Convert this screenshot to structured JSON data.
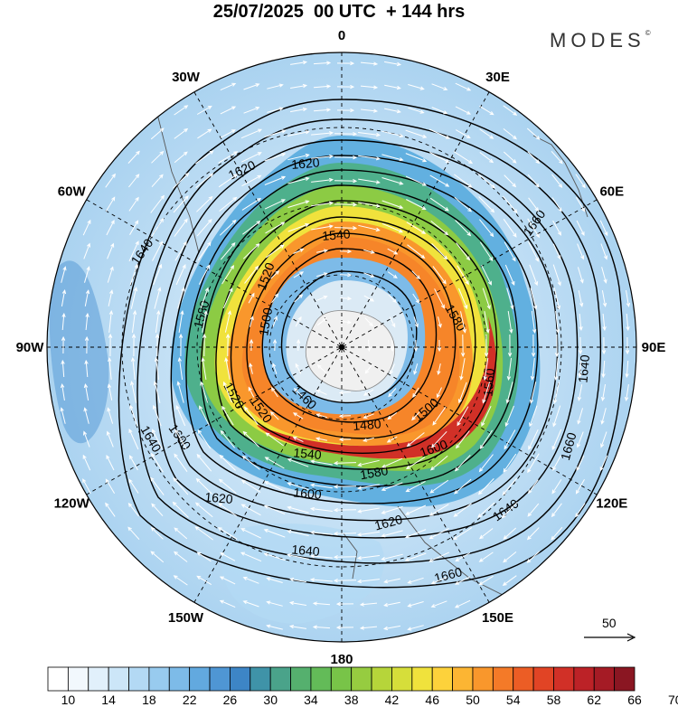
{
  "title": "25/07/2025  00 UTC  + 144 hrs",
  "brand": "MODES",
  "brand_mark": "©",
  "longitude_labels": [
    {
      "text": "0",
      "deg": 0
    },
    {
      "text": "30E",
      "deg": 30
    },
    {
      "text": "60E",
      "deg": 60
    },
    {
      "text": "90E",
      "deg": 90
    },
    {
      "text": "120E",
      "deg": 120
    },
    {
      "text": "150E",
      "deg": 150
    },
    {
      "text": "180",
      "deg": 180
    },
    {
      "text": "150W",
      "deg": -150
    },
    {
      "text": "120W",
      "deg": -120
    },
    {
      "text": "90W",
      "deg": -90
    },
    {
      "text": "60W",
      "deg": -60
    },
    {
      "text": "30W",
      "deg": -30
    }
  ],
  "contour_labels": [
    "1620",
    "1620",
    "1660",
    "1640",
    "1540",
    "1520",
    "1520",
    "1580",
    "1500",
    "1460",
    "1480",
    "1560",
    "1500",
    "1520",
    "1540",
    "1580",
    "1600",
    "1620",
    "1600",
    "1620",
    "1640",
    "1640",
    "1660",
    "1640",
    "1580",
    "1640",
    "1600",
    "1660"
  ],
  "vector_reference": {
    "value": "50"
  },
  "colorbar": {
    "ticks": [
      "10",
      "14",
      "18",
      "22",
      "26",
      "30",
      "34",
      "38",
      "42",
      "46",
      "50",
      "54",
      "58",
      "62",
      "66",
      "70"
    ],
    "colors": [
      "#ffffff",
      "#f2f8fd",
      "#e1f0fb",
      "#cce6f8",
      "#b3d9f4",
      "#98cbef",
      "#7dbbe8",
      "#62a9df",
      "#4f96d4",
      "#3d85c6",
      "#3f93a8",
      "#4aa38a",
      "#55b06e",
      "#63bb58",
      "#78c448",
      "#96cc40",
      "#b6d53a",
      "#d6de3a",
      "#f0e23c",
      "#fdd23b",
      "#fcb533",
      "#f9972c",
      "#f47a28",
      "#ec5d25",
      "#e14425",
      "#d13027",
      "#bc2227",
      "#a51b25",
      "#8a1622"
    ]
  }
}
